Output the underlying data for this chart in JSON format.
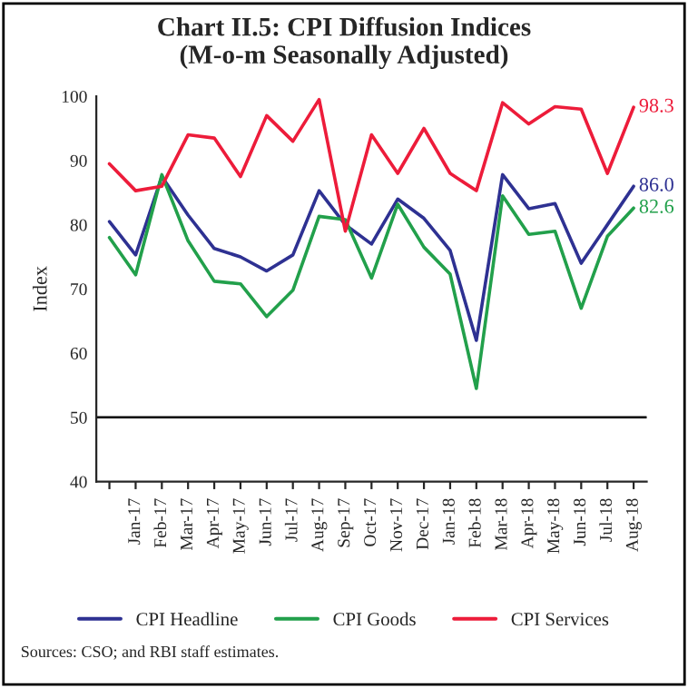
{
  "chart_data": {
    "type": "line",
    "title": "Chart II.5: CPI Diffusion Indices\n(M-o-m Seasonally Adjusted)",
    "ylabel": "Index",
    "categories": [
      null,
      "Jan-17",
      "Feb-17",
      "Mar-17",
      "Apr-17",
      "May-17",
      "Jun-17",
      "Jul-17",
      "Aug-17",
      "Sep-17",
      "Oct-17",
      "Nov-17",
      "Dec-17",
      "Jan-18",
      "Feb-18",
      "Mar-18",
      "Apr-18",
      "May-18",
      "Jun-18",
      "Jul-18",
      "Aug-18"
    ],
    "series": [
      {
        "name": "CPI Headline",
        "color": "#2e3192",
        "values": [
          80.5,
          75.3,
          87.5,
          81.5,
          76.3,
          75,
          72.8,
          75.3,
          85.3,
          80,
          77,
          84,
          81,
          76,
          62,
          87.8,
          82.5,
          83.3,
          74,
          80,
          86.0
        ],
        "value_labels": [
          null,
          null,
          null,
          null,
          null,
          null,
          null,
          null,
          null,
          null,
          null,
          null,
          null,
          null,
          null,
          null,
          null,
          null,
          null,
          null,
          "86.0"
        ]
      },
      {
        "name": "CPI Goods",
        "color": "#22a04b",
        "values": [
          78,
          72.2,
          87.8,
          77.5,
          71.2,
          70.8,
          65.7,
          69.8,
          81.3,
          80.8,
          71.7,
          83.2,
          76.5,
          72.3,
          54.5,
          84.5,
          78.5,
          79,
          67,
          78.2,
          82.6
        ],
        "value_labels": [
          null,
          null,
          null,
          null,
          null,
          null,
          null,
          null,
          null,
          null,
          null,
          null,
          null,
          null,
          null,
          null,
          null,
          null,
          null,
          null,
          "82.6"
        ]
      },
      {
        "name": "CPI Services",
        "color": "#ed1c3a",
        "values": [
          89.5,
          85.3,
          86,
          94,
          93.5,
          87.5,
          97,
          93,
          99.5,
          79,
          94,
          88,
          95,
          88,
          85.3,
          99,
          95.7,
          98.4,
          98,
          88,
          98.3
        ],
        "value_labels": [
          null,
          null,
          null,
          null,
          null,
          null,
          null,
          null,
          null,
          null,
          null,
          null,
          null,
          null,
          null,
          null,
          null,
          null,
          null,
          null,
          "98.3"
        ]
      }
    ],
    "ylim": [
      40,
      100
    ],
    "yticks": [
      40,
      50,
      60,
      70,
      80,
      90,
      100
    ],
    "ref_lines": [
      {
        "axis": "y",
        "value": 50,
        "color": "#000000"
      }
    ],
    "grid": false,
    "legend": "bottom",
    "annotations": [
      "Sources: CSO; and RBI staff estimates."
    ]
  }
}
